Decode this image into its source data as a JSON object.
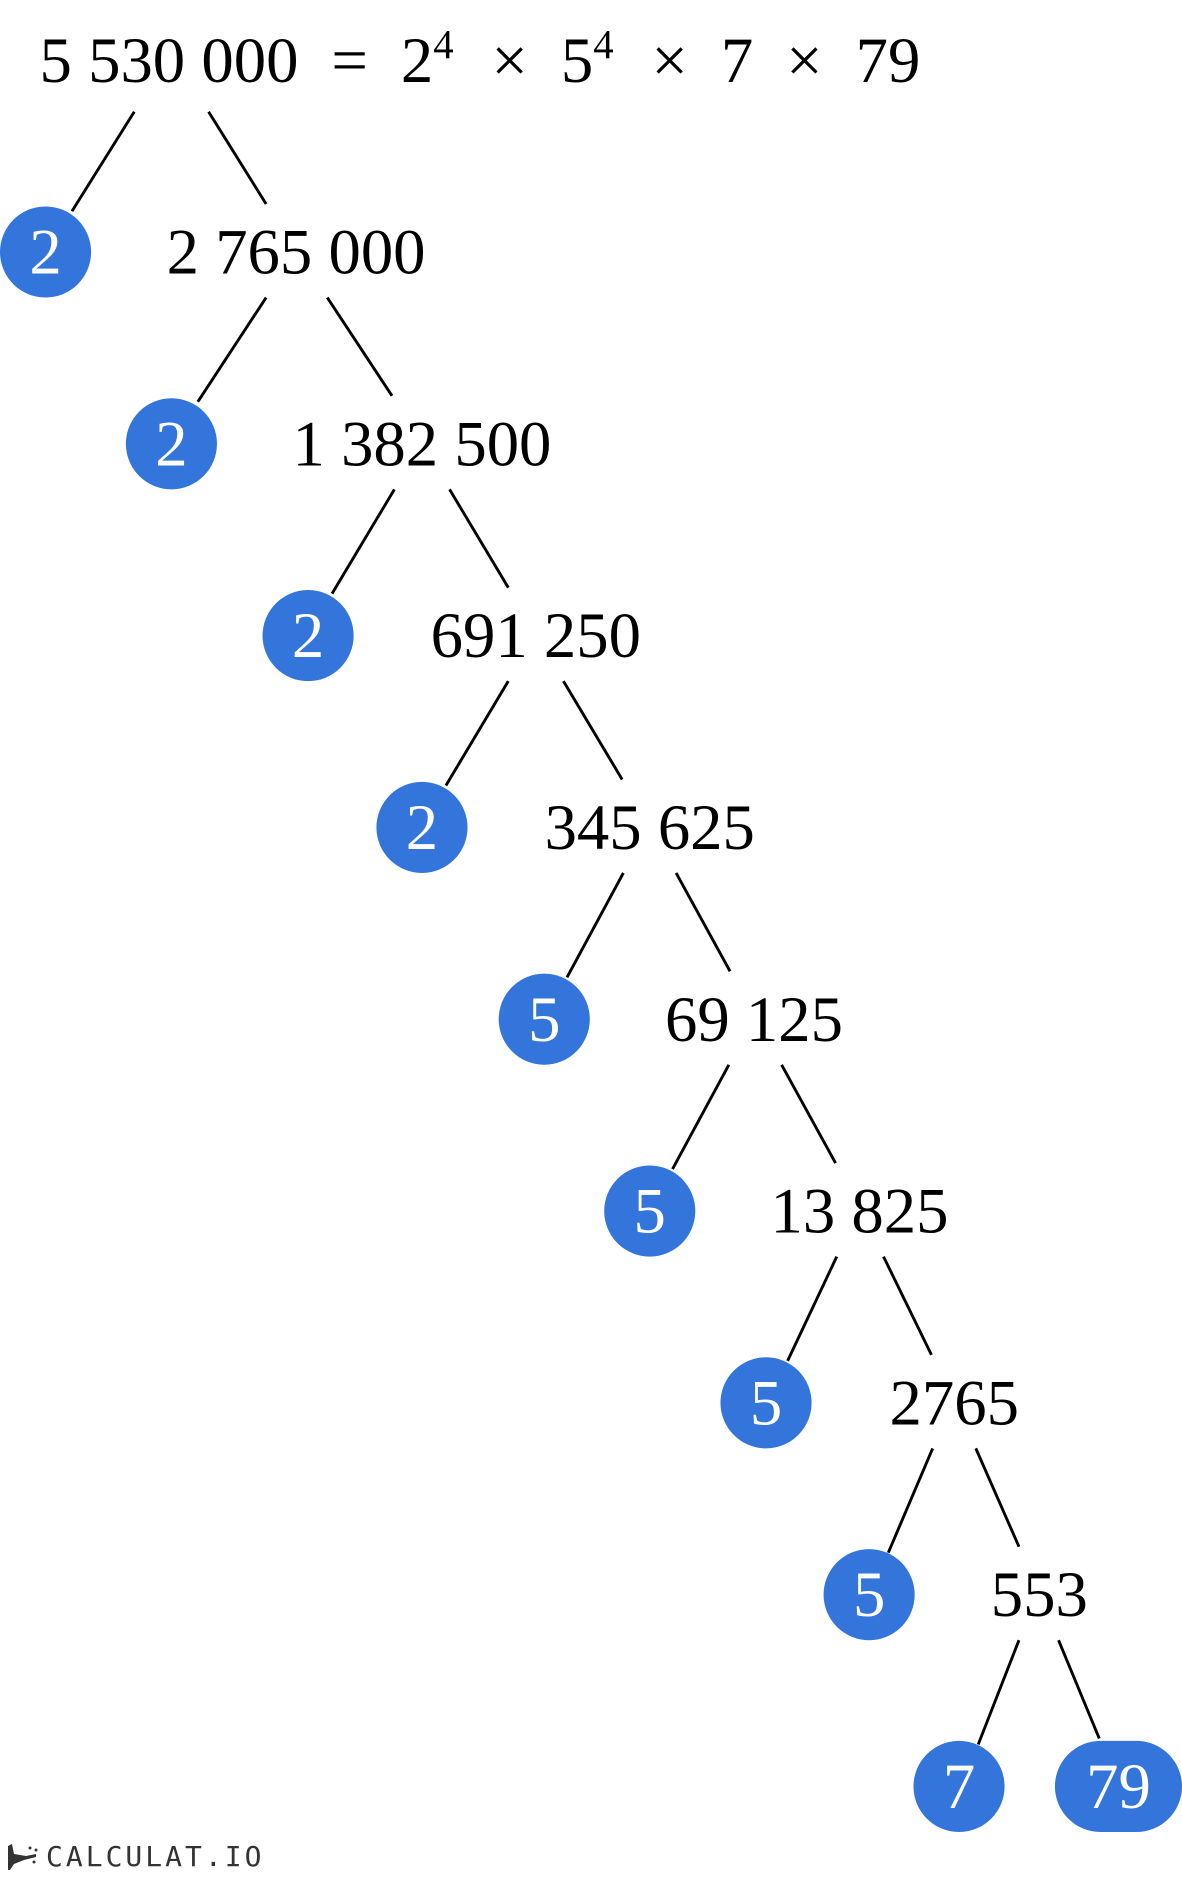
{
  "equation": {
    "number": "5 530 000",
    "equals": "=",
    "factors": [
      {
        "base": "2",
        "exp": "4"
      },
      {
        "base": "5",
        "exp": "4"
      },
      {
        "base": "7",
        "exp": ""
      },
      {
        "base": "79",
        "exp": ""
      }
    ],
    "times": "×"
  },
  "tree": {
    "quotients": [
      "2 765 000",
      "1 382 500",
      "691 250",
      "345 625",
      "69 125",
      "13 825",
      "2765",
      "553"
    ],
    "prime_factors": [
      "2",
      "2",
      "2",
      "2",
      "5",
      "5",
      "5",
      "5",
      "7",
      "79"
    ]
  },
  "colors": {
    "factor_fill": "#3375DB",
    "factor_text": "#FFFFFF",
    "line": "#000000"
  },
  "logo": {
    "text": "CALCULAT.IO",
    "icon": "magic-hand-icon"
  }
}
